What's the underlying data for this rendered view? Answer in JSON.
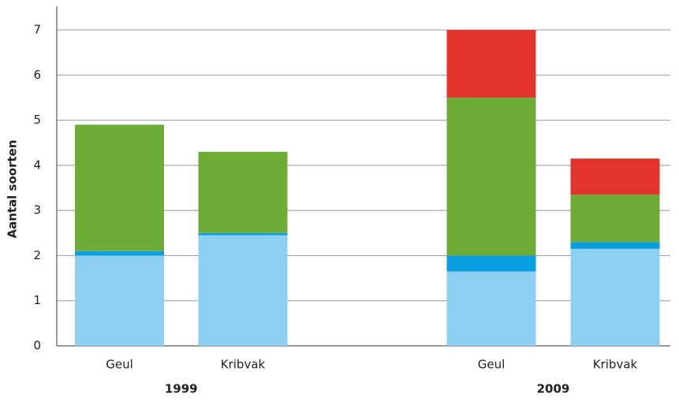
{
  "chart_data": {
    "type": "stacked_bar",
    "ylabel": "Aantal soorten",
    "groups": [
      {
        "label": "1999",
        "categories": [
          "Geul",
          "Kribvak"
        ]
      },
      {
        "label": "2009",
        "categories": [
          "Geul",
          "Kribvak"
        ]
      }
    ],
    "series": [
      {
        "color": "#8ccff0",
        "values": [
          2.0,
          2.45,
          1.65,
          2.15
        ]
      },
      {
        "color": "#0a9ee0",
        "values": [
          0.1,
          0.05,
          0.35,
          0.15
        ]
      },
      {
        "color": "#6fac37",
        "values": [
          2.8,
          1.8,
          3.5,
          1.05
        ]
      },
      {
        "color": "#e1342c",
        "values": [
          0,
          0,
          1.5,
          0.8
        ]
      }
    ],
    "ylim": [
      0,
      7.5
    ],
    "yticks": [
      0,
      1,
      2,
      3,
      4,
      5,
      6,
      7
    ],
    "grid": true
  }
}
